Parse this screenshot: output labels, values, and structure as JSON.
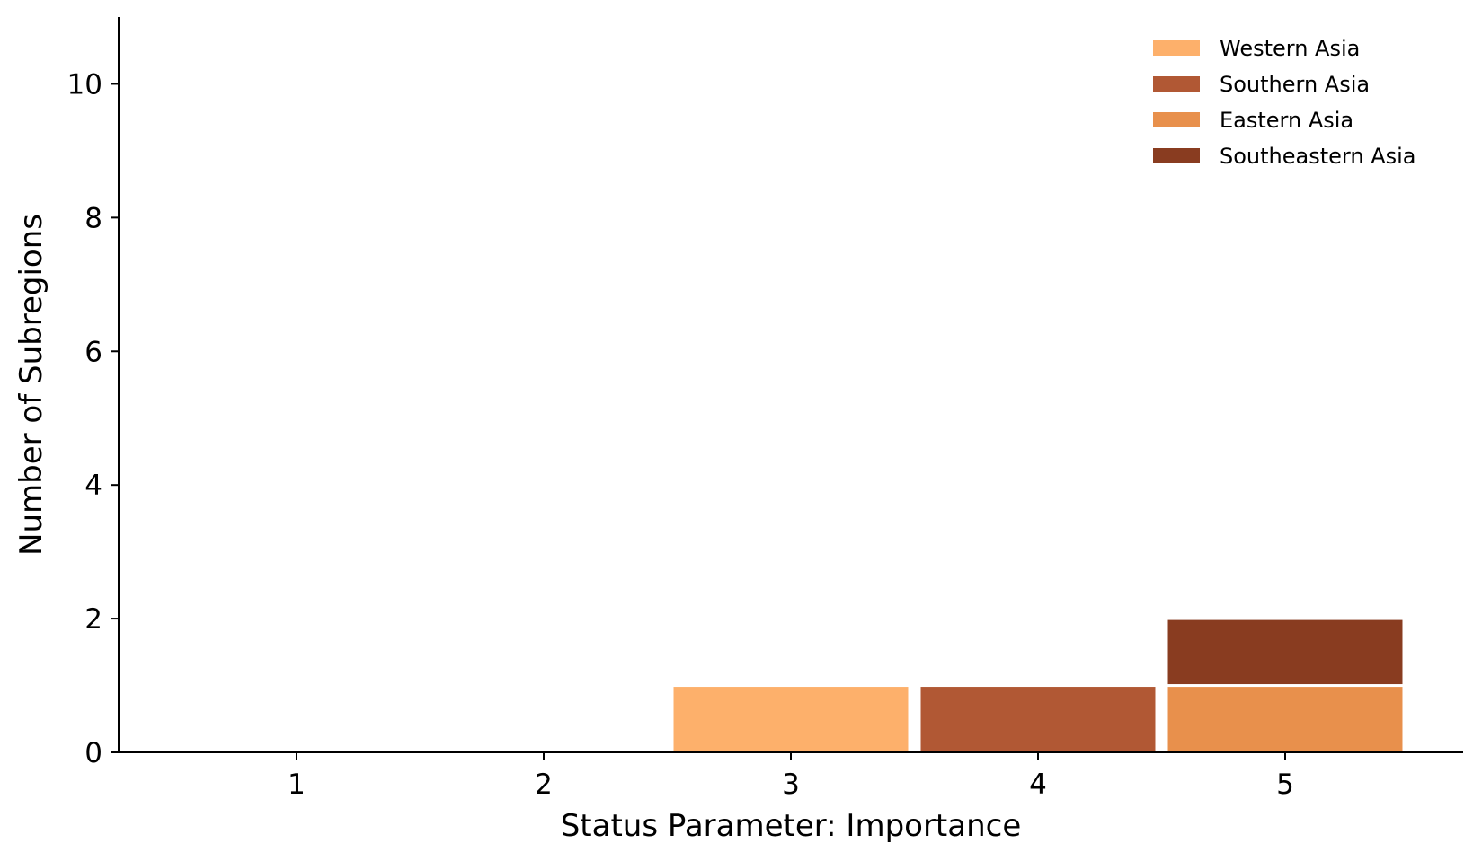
{
  "chart_data": {
    "type": "bar",
    "stacked": true,
    "title": "",
    "xlabel": "Status Parameter: Importance",
    "ylabel": "Number of Subregions",
    "categories": [
      "1",
      "2",
      "3",
      "4",
      "5"
    ],
    "x_ticks": [
      "1",
      "2",
      "3",
      "4",
      "5"
    ],
    "y_ticks": [
      "0",
      "2",
      "4",
      "6",
      "8",
      "10"
    ],
    "xlim": [
      0.28,
      5.72
    ],
    "ylim": [
      0,
      11
    ],
    "grid": false,
    "legend_position": "top-right",
    "series": [
      {
        "name": "Western Asia",
        "color": "#fdb06b",
        "values": [
          0,
          0,
          1,
          0,
          0
        ]
      },
      {
        "name": "Southern Asia",
        "color": "#b15834",
        "values": [
          0,
          0,
          0,
          1,
          0
        ]
      },
      {
        "name": "Eastern Asia",
        "color": "#e8904c",
        "values": [
          0,
          0,
          0,
          0,
          1
        ]
      },
      {
        "name": "Southeastern Asia",
        "color": "#893c20",
        "values": [
          0,
          0,
          0,
          0,
          1
        ]
      }
    ]
  }
}
